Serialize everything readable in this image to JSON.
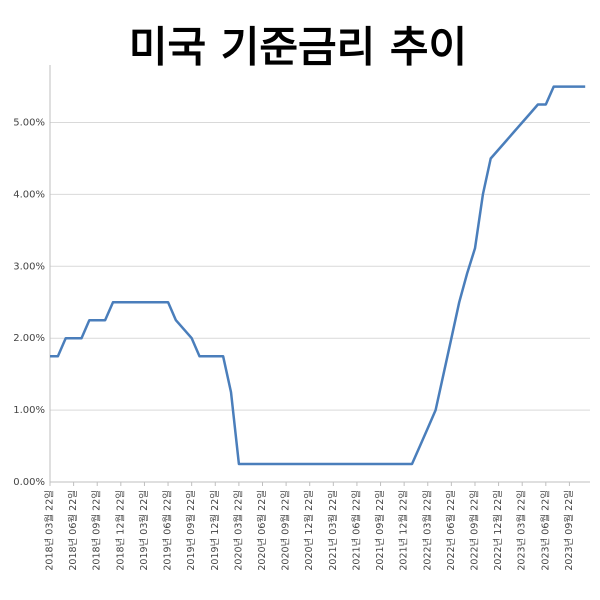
{
  "chart_data": {
    "type": "line",
    "title": "미국 기준금리 추이",
    "categories": [
      "2018년 03월 22일",
      null,
      null,
      "2018년 06월 22일",
      null,
      null,
      "2018년 09월 22일",
      null,
      null,
      "2018년 12월 22일",
      null,
      null,
      "2019년 03월 22일",
      null,
      null,
      "2019년 06월 22일",
      null,
      null,
      "2019년 09월 22일",
      null,
      null,
      "2019년 12월 22일",
      null,
      null,
      "2020년 03월 22일",
      null,
      null,
      "2020년 06월 22일",
      null,
      null,
      "2020년 09월 22일",
      null,
      null,
      "2020년 12월 22일",
      null,
      null,
      "2021년 03월 22일",
      null,
      null,
      "2021년 06월 22일",
      null,
      null,
      "2021년 09월 22일",
      null,
      null,
      "2021년 12월 22일",
      null,
      null,
      "2022년 03월 22일",
      null,
      null,
      "2022년 06월 22일",
      null,
      null,
      "2022년 09월 22일",
      null,
      null,
      "2022년 12월 22일",
      null,
      null,
      "2023년 03월 22일",
      null,
      null,
      "2023년 06월 22일",
      null,
      null,
      "2023년 09월 22일",
      null,
      null
    ],
    "values": [
      1.75,
      1.75,
      2.0,
      2.0,
      2.0,
      2.25,
      2.25,
      2.25,
      2.5,
      2.5,
      2.5,
      2.5,
      2.5,
      2.5,
      2.5,
      2.5,
      2.25,
      2.125,
      2.0,
      1.75,
      1.75,
      1.75,
      1.75,
      1.25,
      0.25,
      0.25,
      0.25,
      0.25,
      0.25,
      0.25,
      0.25,
      0.25,
      0.25,
      0.25,
      0.25,
      0.25,
      0.25,
      0.25,
      0.25,
      0.25,
      0.25,
      0.25,
      0.25,
      0.25,
      0.25,
      0.25,
      0.25,
      0.5,
      0.75,
      1.0,
      1.5,
      2.0,
      2.5,
      2.9,
      3.25,
      4.0,
      4.5,
      4.625,
      4.75,
      4.875,
      5.0,
      5.125,
      5.25,
      5.25,
      5.5,
      5.5,
      5.5,
      5.5,
      5.5
    ],
    "color": "#4a7ebb",
    "ylim": [
      0,
      5.8
    ],
    "yticks": [
      {
        "value": 0,
        "label": "0.00%"
      },
      {
        "value": 1,
        "label": "1.00%"
      },
      {
        "value": 2,
        "label": "2.00%"
      },
      {
        "value": 3,
        "label": "3.00%"
      },
      {
        "value": 4,
        "label": "4.00%"
      },
      {
        "value": 5,
        "label": "5.00%"
      }
    ],
    "grid": true
  }
}
